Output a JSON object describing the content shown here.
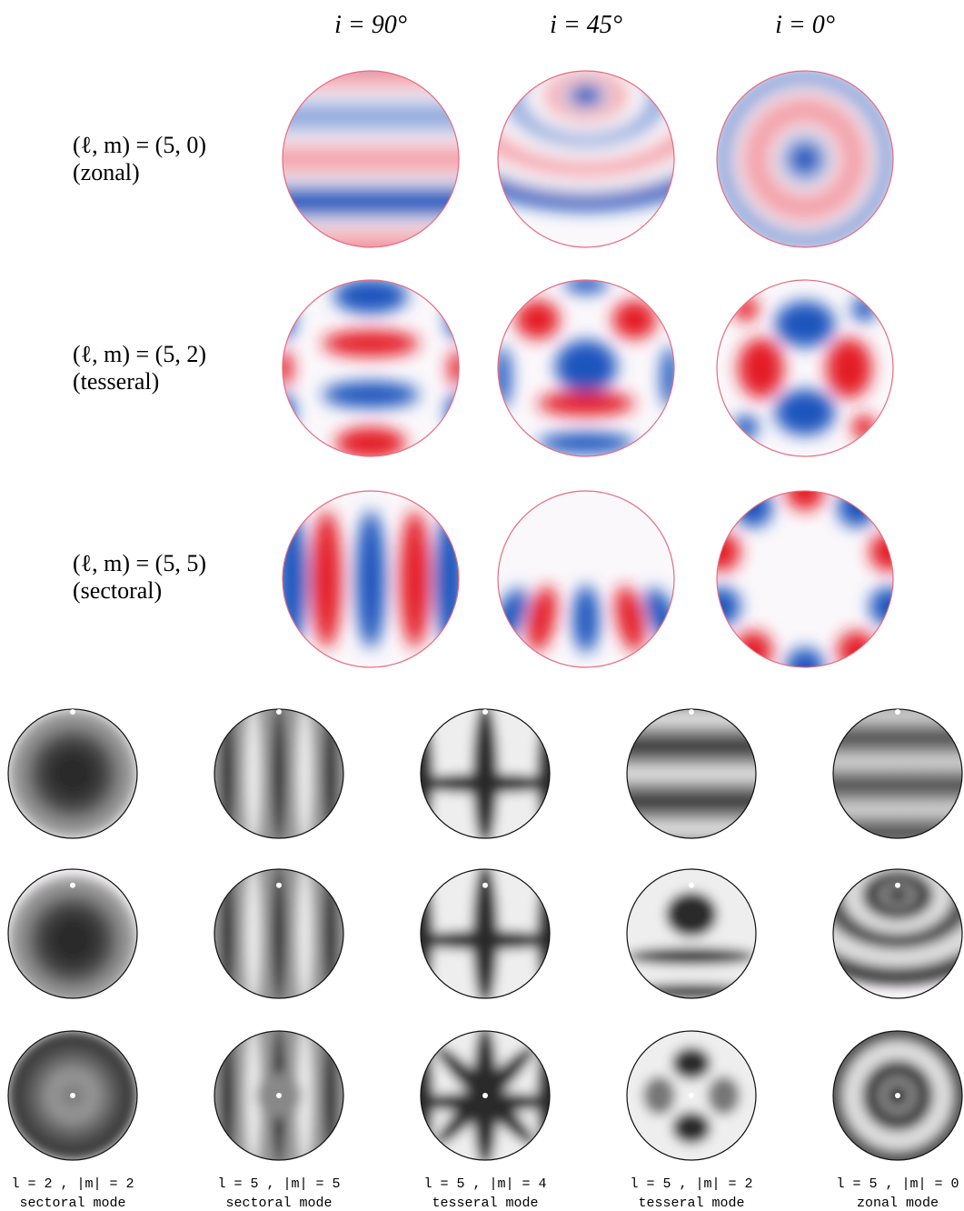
{
  "top_panel": {
    "column_headers": [
      "i = 90°",
      "i = 45°",
      "i = 0°"
    ],
    "rows": [
      {
        "label": "(ℓ, m) = (5, 0)",
        "type": "(zonal)"
      },
      {
        "label": "(ℓ, m) = (5, 2)",
        "type": "(tesseral)"
      },
      {
        "label": "(ℓ, m) = (5, 5)",
        "type": "(sectoral)"
      }
    ]
  },
  "bottom_panel": {
    "columns": [
      {
        "label": "l = 2 , |m| = 2",
        "mode": "sectoral mode"
      },
      {
        "label": "l = 5 , |m| = 5",
        "mode": "sectoral mode"
      },
      {
        "label": "l = 5 , |m| = 4",
        "mode": "tesseral mode"
      },
      {
        "label": "l = 5 , |m| = 2",
        "mode": "tesseral mode"
      },
      {
        "label": "l = 5 , |m| = 0",
        "mode": "zonal mode"
      }
    ]
  }
}
